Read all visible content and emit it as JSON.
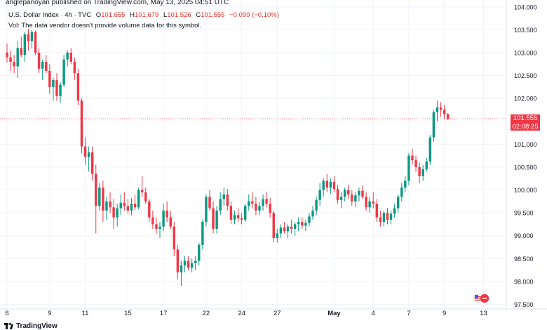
{
  "header": {
    "published_line": "anglepanoyan published on TradingView.com, May 13, 2025 04:51 UTC",
    "symbol": "U.S. Dollar Index · 4h · TVC",
    "open_label": "O",
    "open": "101.655",
    "high_label": "H",
    "high": "101.679",
    "low_label": "L",
    "low": "101.526",
    "close_label": "C",
    "close": "101.555",
    "change": "−0.099 (−0.10%)",
    "volume_note": "Vol: The data vendor doesn't provide volume data for this symbol."
  },
  "price_tag": {
    "price": "101.555",
    "countdown": "02:08:25"
  },
  "footer": {
    "brand": "TradingView"
  },
  "icons": {
    "logo": "tradingview-logo-icon",
    "flag": "us-flag-icon"
  },
  "colors": {
    "up": "#089981",
    "down": "#f23645",
    "grid": "#f0f3fa",
    "last_price_line": "#f23645"
  },
  "chart_data": {
    "type": "candlestick",
    "title": "U.S. Dollar Index · 4h · TVC",
    "ylim": [
      97.4,
      104.15
    ],
    "y_ticks": [
      "104.000",
      "103.500",
      "103.000",
      "102.500",
      "102.000",
      "101.500",
      "101.000",
      "100.500",
      "100.000",
      "99.500",
      "99.000",
      "98.500",
      "98.000",
      "97.500"
    ],
    "x_ticks": [
      {
        "label": "6",
        "index": 0
      },
      {
        "label": "9",
        "index": 12
      },
      {
        "label": "11",
        "index": 22
      },
      {
        "label": "15",
        "index": 34
      },
      {
        "label": "17",
        "index": 44
      },
      {
        "label": "22",
        "index": 56
      },
      {
        "label": "24",
        "index": 66
      },
      {
        "label": "27",
        "index": 76
      },
      {
        "label": "May",
        "index": 92
      },
      {
        "label": "4",
        "index": 103
      },
      {
        "label": "7",
        "index": 113
      },
      {
        "label": "9",
        "index": 123
      },
      {
        "label": "13",
        "index": 134
      }
    ],
    "last_price": 101.555,
    "candles": [
      [
        103.0,
        103.2,
        102.78,
        102.9
      ],
      [
        102.9,
        103.05,
        102.6,
        102.8
      ],
      [
        102.8,
        102.95,
        102.55,
        102.7
      ],
      [
        102.7,
        103.25,
        102.45,
        103.1
      ],
      [
        103.1,
        103.35,
        102.9,
        102.95
      ],
      [
        102.95,
        103.45,
        102.8,
        103.4
      ],
      [
        103.4,
        103.52,
        103.05,
        103.25
      ],
      [
        103.25,
        103.5,
        103.1,
        103.45
      ],
      [
        103.45,
        103.48,
        102.95,
        103.0
      ],
      [
        103.0,
        103.1,
        102.55,
        102.65
      ],
      [
        102.65,
        102.85,
        102.4,
        102.8
      ],
      [
        102.8,
        102.95,
        102.55,
        102.6
      ],
      [
        102.6,
        102.75,
        102.1,
        102.25
      ],
      [
        102.25,
        102.45,
        101.95,
        102.4
      ],
      [
        102.4,
        102.55,
        101.95,
        102.05
      ],
      [
        102.05,
        102.35,
        101.9,
        102.3
      ],
      [
        102.3,
        102.95,
        102.25,
        102.85
      ],
      [
        102.85,
        103.05,
        102.7,
        103.0
      ],
      [
        103.0,
        103.1,
        102.75,
        102.8
      ],
      [
        102.8,
        102.9,
        102.4,
        102.55
      ],
      [
        102.55,
        102.65,
        101.85,
        101.95
      ],
      [
        101.95,
        102.0,
        100.8,
        100.95
      ],
      [
        100.95,
        101.15,
        100.55,
        100.72
      ],
      [
        100.72,
        100.95,
        100.4,
        100.82
      ],
      [
        100.82,
        100.95,
        100.2,
        100.35
      ],
      [
        100.35,
        100.55,
        99.05,
        99.65
      ],
      [
        99.65,
        100.15,
        99.55,
        100.05
      ],
      [
        100.05,
        100.2,
        99.3,
        99.55
      ],
      [
        99.55,
        99.85,
        99.35,
        99.75
      ],
      [
        99.75,
        99.95,
        99.5,
        99.62
      ],
      [
        99.62,
        99.8,
        99.15,
        99.4
      ],
      [
        99.4,
        99.7,
        99.2,
        99.6
      ],
      [
        99.6,
        99.9,
        99.45,
        99.72
      ],
      [
        99.72,
        99.95,
        99.55,
        99.65
      ],
      [
        99.65,
        99.8,
        99.48,
        99.55
      ],
      [
        99.55,
        99.82,
        99.45,
        99.7
      ],
      [
        99.7,
        99.9,
        99.55,
        99.62
      ],
      [
        99.62,
        100.05,
        99.58,
        100.0
      ],
      [
        100.0,
        100.3,
        99.85,
        99.95
      ],
      [
        99.95,
        100.05,
        99.7,
        99.75
      ],
      [
        99.75,
        99.8,
        99.3,
        99.4
      ],
      [
        99.4,
        99.55,
        99.15,
        99.25
      ],
      [
        99.25,
        99.4,
        99.05,
        99.15
      ],
      [
        99.15,
        99.3,
        98.95,
        99.2
      ],
      [
        99.2,
        99.7,
        99.1,
        99.55
      ],
      [
        99.55,
        99.75,
        99.3,
        99.4
      ],
      [
        99.4,
        99.55,
        99.15,
        99.2
      ],
      [
        99.2,
        99.3,
        98.55,
        98.7
      ],
      [
        98.7,
        98.8,
        98.05,
        98.2
      ],
      [
        98.2,
        98.45,
        97.9,
        98.35
      ],
      [
        98.35,
        98.55,
        98.2,
        98.45
      ],
      [
        98.45,
        98.55,
        98.25,
        98.3
      ],
      [
        98.3,
        98.5,
        98.2,
        98.4
      ],
      [
        98.4,
        98.55,
        98.25,
        98.45
      ],
      [
        98.45,
        98.85,
        98.35,
        98.8
      ],
      [
        98.8,
        99.35,
        98.7,
        99.3
      ],
      [
        99.3,
        99.9,
        99.2,
        99.85
      ],
      [
        99.85,
        100.0,
        99.55,
        99.6
      ],
      [
        99.6,
        99.75,
        99.05,
        99.15
      ],
      [
        99.15,
        99.65,
        99.05,
        99.55
      ],
      [
        99.55,
        99.95,
        99.45,
        99.8
      ],
      [
        99.8,
        100.05,
        99.65,
        99.9
      ],
      [
        99.9,
        100.02,
        99.55,
        99.65
      ],
      [
        99.65,
        99.75,
        99.25,
        99.35
      ],
      [
        99.35,
        99.55,
        99.25,
        99.45
      ],
      [
        99.45,
        99.6,
        99.3,
        99.38
      ],
      [
        99.38,
        99.5,
        99.25,
        99.35
      ],
      [
        99.35,
        99.7,
        99.3,
        99.65
      ],
      [
        99.65,
        99.9,
        99.55,
        99.75
      ],
      [
        99.75,
        99.95,
        99.6,
        99.7
      ],
      [
        99.7,
        99.85,
        99.45,
        99.55
      ],
      [
        99.55,
        99.75,
        99.45,
        99.65
      ],
      [
        99.65,
        99.9,
        99.55,
        99.8
      ],
      [
        99.8,
        99.95,
        99.62,
        99.7
      ],
      [
        99.7,
        99.82,
        99.4,
        99.5
      ],
      [
        99.5,
        99.55,
        98.85,
        98.95
      ],
      [
        98.95,
        99.15,
        98.85,
        99.05
      ],
      [
        99.05,
        99.25,
        98.95,
        99.18
      ],
      [
        99.18,
        99.3,
        99.05,
        99.1
      ],
      [
        99.1,
        99.25,
        98.95,
        99.2
      ],
      [
        99.2,
        99.35,
        99.05,
        99.15
      ],
      [
        99.15,
        99.3,
        99.0,
        99.25
      ],
      [
        99.25,
        99.4,
        99.1,
        99.3
      ],
      [
        99.3,
        99.4,
        99.15,
        99.22
      ],
      [
        99.22,
        99.35,
        99.1,
        99.28
      ],
      [
        99.28,
        99.5,
        99.2,
        99.42
      ],
      [
        99.42,
        99.65,
        99.35,
        99.55
      ],
      [
        99.55,
        99.85,
        99.45,
        99.78
      ],
      [
        99.78,
        100.15,
        99.65,
        100.0
      ],
      [
        100.0,
        100.25,
        99.85,
        100.2
      ],
      [
        100.2,
        100.35,
        99.95,
        100.05
      ],
      [
        100.05,
        100.25,
        99.92,
        100.18
      ],
      [
        100.18,
        100.3,
        99.95,
        100.02
      ],
      [
        100.02,
        100.1,
        99.7,
        99.78
      ],
      [
        99.78,
        99.95,
        99.6,
        99.85
      ],
      [
        99.85,
        100.05,
        99.75,
        100.0
      ],
      [
        100.0,
        100.12,
        99.8,
        99.9
      ],
      [
        99.9,
        100.0,
        99.65,
        99.75
      ],
      [
        99.75,
        99.95,
        99.62,
        99.88
      ],
      [
        99.88,
        100.05,
        99.75,
        99.98
      ],
      [
        99.98,
        100.1,
        99.8,
        99.85
      ],
      [
        99.85,
        99.95,
        99.55,
        99.62
      ],
      [
        99.62,
        99.85,
        99.5,
        99.75
      ],
      [
        99.75,
        99.95,
        99.6,
        99.7
      ],
      [
        99.7,
        99.8,
        99.3,
        99.4
      ],
      [
        99.4,
        99.55,
        99.2,
        99.3
      ],
      [
        99.3,
        99.55,
        99.2,
        99.5
      ],
      [
        99.5,
        99.6,
        99.25,
        99.35
      ],
      [
        99.35,
        99.55,
        99.25,
        99.48
      ],
      [
        99.48,
        99.7,
        99.4,
        99.6
      ],
      [
        99.6,
        99.9,
        99.5,
        99.85
      ],
      [
        99.85,
        100.15,
        99.75,
        100.05
      ],
      [
        100.05,
        100.3,
        99.95,
        100.2
      ],
      [
        100.2,
        100.8,
        100.1,
        100.75
      ],
      [
        100.75,
        100.9,
        100.55,
        100.65
      ],
      [
        100.65,
        100.75,
        100.4,
        100.5
      ],
      [
        100.5,
        100.6,
        100.15,
        100.3
      ],
      [
        100.3,
        100.55,
        100.2,
        100.45
      ],
      [
        100.45,
        100.7,
        100.4,
        100.62
      ],
      [
        100.62,
        101.2,
        100.55,
        101.15
      ],
      [
        101.15,
        101.75,
        101.05,
        101.7
      ],
      [
        101.7,
        101.95,
        101.5,
        101.8
      ],
      [
        101.8,
        101.92,
        101.6,
        101.75
      ],
      [
        101.75,
        101.85,
        101.55,
        101.655
      ],
      [
        101.655,
        101.679,
        101.526,
        101.555
      ]
    ]
  }
}
